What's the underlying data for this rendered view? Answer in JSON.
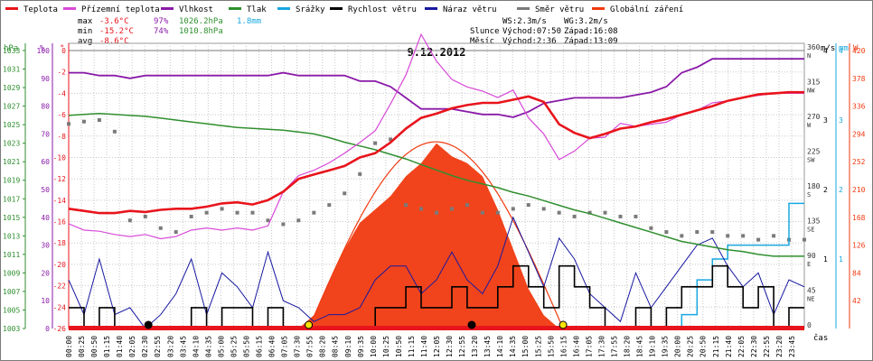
{
  "chart_data": {
    "type": "line",
    "title": "9.12.2012",
    "legend": {
      "position": "top",
      "items": [
        {
          "label": "Teplota",
          "color": "#e8141c"
        },
        {
          "label": "Přízemní teplota",
          "color": "#d84ad8"
        },
        {
          "label": "Vlhkost",
          "color": "#8a1aa8"
        },
        {
          "label": "Tlak",
          "color": "#2f8f2f"
        },
        {
          "label": "Srážky",
          "color": "#16a8e0"
        },
        {
          "label": "Rychlost větru",
          "color": "#000000"
        },
        {
          "label": "Náraz větru",
          "color": "#1818a0"
        },
        {
          "label": "Směr větru",
          "color": "#7a7a7a"
        },
        {
          "label": "Globální záření",
          "color": "#f03a10"
        }
      ]
    },
    "stats": {
      "max_label": "max",
      "max_temp": "-3.6°C",
      "max_hum": "97%",
      "max_press": "1026.2hPa",
      "rain": "1.8mm",
      "min_label": "min",
      "min_temp": "-15.2°C",
      "min_hum": "74%",
      "min_press": "1010.8hPa",
      "avg_label": "avg",
      "avg_temp": "-8.6°C"
    },
    "sun": {
      "ws": "WS:2.3m/s",
      "wg": "WG:3.2m/s",
      "sun_label": "Slunce",
      "sun_rise": "Východ:07:50",
      "sun_set": "Západ:16:08",
      "moon_label": "Měsíc",
      "moon_rise": "Východ:2:36",
      "moon_set": "Západ:13:09"
    },
    "axes": {
      "hpa_title": "hPa",
      "pct_title": "%",
      "deg_title": "°",
      "ms_title": "m/s",
      "mm_title": "mm",
      "w_title": "W",
      "x_title": "čas",
      "hpa_ticks": [
        "1033",
        "1031",
        "1029",
        "1027",
        "1025",
        "1023",
        "1021",
        "1019",
        "1017",
        "1015",
        "1013",
        "1011",
        "1009",
        "1007",
        "1005",
        "1003"
      ],
      "pct_ticks": [
        "100",
        "90",
        "80",
        "70",
        "60",
        "50",
        "40",
        "30",
        "20",
        "10",
        "0"
      ],
      "temp_ticks": [
        "0",
        "-2",
        "-4",
        "-6",
        "-8",
        "-10",
        "-12",
        "-14",
        "-16",
        "-18",
        "-20",
        "-22",
        "-24",
        "-26"
      ],
      "dir_ticks": [
        "360",
        "315",
        "270",
        "225",
        "180",
        "135",
        "90",
        "45",
        "0"
      ],
      "dir_letters": [
        "N",
        "NW",
        "W",
        "SW",
        "S",
        "SE",
        "E",
        "NE",
        ""
      ],
      "ms_ticks": [
        "4",
        "3",
        "2",
        "1"
      ],
      "mm_ticks": [
        "4",
        "3",
        "2",
        "1"
      ],
      "w_ticks": [
        "420",
        "378",
        "336",
        "294",
        "252",
        "210",
        "168",
        "126",
        "84",
        "42"
      ],
      "ylim_temp": [
        -26,
        0
      ],
      "ylim_hum": [
        0,
        100
      ],
      "ylim_press": [
        1003,
        1033
      ],
      "ylim_dir": [
        0,
        360
      ],
      "ylim_wind": [
        0,
        4
      ],
      "ylim_rad": [
        0,
        420
      ]
    },
    "x_labels": [
      "00:00",
      "00:25",
      "00:50",
      "01:15",
      "01:40",
      "02:05",
      "02:30",
      "02:55",
      "03:20",
      "03:45",
      "04:10",
      "04:35",
      "05:00",
      "05:25",
      "05:50",
      "06:15",
      "06:40",
      "07:05",
      "07:30",
      "07:55",
      "08:20",
      "08:45",
      "09:10",
      "09:35",
      "10:00",
      "10:25",
      "10:50",
      "11:15",
      "11:40",
      "12:05",
      "12:30",
      "12:55",
      "13:20",
      "13:45",
      "14:10",
      "14:35",
      "15:00",
      "15:25",
      "15:50",
      "16:15",
      "16:40",
      "17:05",
      "17:30",
      "17:55",
      "18:20",
      "18:45",
      "19:10",
      "19:35",
      "20:00",
      "20:25",
      "20:50",
      "21:15",
      "21:40",
      "22:05",
      "22:30",
      "22:55",
      "23:20",
      "23:45"
    ],
    "hours": [
      0,
      0.5,
      1,
      1.5,
      2,
      2.5,
      3,
      3.5,
      4,
      4.5,
      5,
      5.5,
      6,
      6.5,
      7,
      7.5,
      8,
      8.5,
      9,
      9.5,
      10,
      10.5,
      11,
      11.5,
      12,
      12.5,
      13,
      13.5,
      14,
      14.5,
      15,
      15.5,
      16,
      16.5,
      17,
      17.5,
      18,
      18.5,
      19,
      19.5,
      20,
      20.5,
      21,
      21.5,
      22,
      22.5,
      23,
      23.5,
      24
    ],
    "series": [
      {
        "name": "Teplota",
        "unit": "°C",
        "values": [
          -14.8,
          -15.0,
          -15.2,
          -15.2,
          -15.0,
          -15.1,
          -14.9,
          -14.8,
          -14.8,
          -14.6,
          -14.3,
          -14.2,
          -14.4,
          -14.0,
          -13.2,
          -12.0,
          -11.6,
          -11.2,
          -10.8,
          -10.0,
          -9.6,
          -8.6,
          -7.3,
          -6.3,
          -5.9,
          -5.4,
          -5.1,
          -4.9,
          -4.9,
          -4.6,
          -4.3,
          -4.8,
          -6.9,
          -7.7,
          -8.2,
          -7.8,
          -7.3,
          -7.1,
          -6.7,
          -6.4,
          -6.0,
          -5.6,
          -5.2,
          -4.7,
          -4.4,
          -4.1,
          -4.0,
          -3.9,
          -3.9
        ]
      },
      {
        "name": "Přízemní teplota",
        "unit": "°C",
        "values": [
          -16.2,
          -16.8,
          -16.9,
          -17.2,
          -17.4,
          -17.2,
          -17.6,
          -17.4,
          -16.8,
          -16.6,
          -16.8,
          -16.6,
          -16.8,
          -16.4,
          -13.2,
          -11.7,
          -11.2,
          -10.5,
          -9.6,
          -8.6,
          -7.5,
          -5.0,
          -2.3,
          1.5,
          -1.0,
          -2.7,
          -3.4,
          -3.8,
          -4.4,
          -3.7,
          -6.3,
          -7.8,
          -10.2,
          -9.4,
          -8.2,
          -8.1,
          -6.8,
          -7.1,
          -6.9,
          -6.7,
          -6.0,
          -5.6,
          -4.9,
          -4.7,
          -4.4,
          -4.2,
          -4.0,
          -4.0,
          -4.0
        ]
      },
      {
        "name": "Vlhkost",
        "unit": "%",
        "values": [
          92,
          92,
          91,
          91,
          90,
          91,
          91,
          91,
          91,
          91,
          91,
          91,
          91,
          91,
          92,
          91,
          91,
          91,
          91,
          89,
          89,
          87,
          83,
          79,
          79,
          79,
          78,
          77,
          77,
          76,
          78,
          81,
          82,
          83,
          83,
          83,
          83,
          84,
          85,
          87,
          92,
          94,
          97,
          97,
          97,
          97,
          97,
          97,
          97
        ]
      },
      {
        "name": "Tlak",
        "unit": "hPa",
        "values": [
          1026.0,
          1026.1,
          1026.2,
          1026.1,
          1026.0,
          1025.9,
          1025.7,
          1025.5,
          1025.3,
          1025.1,
          1024.9,
          1024.7,
          1024.6,
          1024.5,
          1024.4,
          1024.2,
          1024.0,
          1023.6,
          1023.1,
          1022.7,
          1022.3,
          1021.8,
          1021.3,
          1020.7,
          1020.1,
          1019.5,
          1019.0,
          1018.6,
          1018.2,
          1017.7,
          1017.3,
          1016.8,
          1016.3,
          1015.8,
          1015.4,
          1014.9,
          1014.4,
          1013.9,
          1013.4,
          1012.9,
          1012.4,
          1012.1,
          1011.8,
          1011.5,
          1011.3,
          1011.0,
          1010.8,
          1010.8,
          1010.8
        ]
      },
      {
        "name": "Srážky",
        "unit": "mm",
        "values": [
          0,
          0,
          0,
          0,
          0,
          0,
          0,
          0,
          0,
          0,
          0,
          0,
          0,
          0,
          0,
          0,
          0,
          0,
          0,
          0,
          0,
          0,
          0,
          0,
          0,
          0,
          0,
          0,
          0,
          0,
          0,
          0,
          0,
          0,
          0,
          0,
          0,
          0,
          0,
          0,
          0.2,
          0.7,
          1.0,
          1.2,
          1.2,
          1.2,
          1.2,
          1.8,
          1.8
        ]
      },
      {
        "name": "Rychlost větru",
        "unit": "m/s",
        "values": [
          0.3,
          0.0,
          0.3,
          0.0,
          0.0,
          0.0,
          0.0,
          0.0,
          0.3,
          0.0,
          0.3,
          0.3,
          0.0,
          0.3,
          0.0,
          0.0,
          0.0,
          0.0,
          0.0,
          0.0,
          0.3,
          0.3,
          0.6,
          0.3,
          0.3,
          0.6,
          0.3,
          0.3,
          0.6,
          0.9,
          0.6,
          0.3,
          0.9,
          0.6,
          0.3,
          0.0,
          0.0,
          0.3,
          0.0,
          0.3,
          0.6,
          0.6,
          0.9,
          0.6,
          0.3,
          0.6,
          0.0,
          0.3,
          0.3
        ]
      },
      {
        "name": "Náraz větru",
        "unit": "m/s",
        "values": [
          0.7,
          0.2,
          1.0,
          0.2,
          0.3,
          0.0,
          0.2,
          0.5,
          1.0,
          0.2,
          0.8,
          0.6,
          0.3,
          1.1,
          0.4,
          0.3,
          0.1,
          0.2,
          0.2,
          0.3,
          0.7,
          0.9,
          0.9,
          0.5,
          0.7,
          1.1,
          0.7,
          0.5,
          0.9,
          1.6,
          1.1,
          0.6,
          1.3,
          1.0,
          0.5,
          0.3,
          0.1,
          0.8,
          0.3,
          0.6,
          0.9,
          1.2,
          1.3,
          0.9,
          0.6,
          0.8,
          0.2,
          0.7,
          0.6
        ]
      },
      {
        "name": "Směr větru",
        "unit": "°",
        "values": [
          265,
          268,
          270,
          255,
          140,
          145,
          130,
          125,
          145,
          150,
          155,
          150,
          150,
          140,
          135,
          140,
          150,
          160,
          175,
          200,
          240,
          245,
          160,
          155,
          150,
          155,
          160,
          150,
          150,
          155,
          160,
          155,
          150,
          145,
          150,
          150,
          145,
          145,
          130,
          125,
          120,
          125,
          125,
          120,
          120,
          115,
          120,
          115,
          115
        ]
      },
      {
        "name": "Globální záření",
        "unit": "W",
        "values": [
          0,
          0,
          0,
          0,
          0,
          0,
          0,
          0,
          0,
          0,
          0,
          0,
          0,
          0,
          0,
          0,
          20,
          70,
          120,
          160,
          180,
          200,
          230,
          250,
          280,
          260,
          250,
          230,
          180,
          120,
          60,
          20,
          0,
          0,
          0,
          0,
          0,
          0,
          0,
          0,
          0,
          0,
          0,
          0,
          0,
          0,
          0,
          0,
          0
        ]
      }
    ]
  }
}
